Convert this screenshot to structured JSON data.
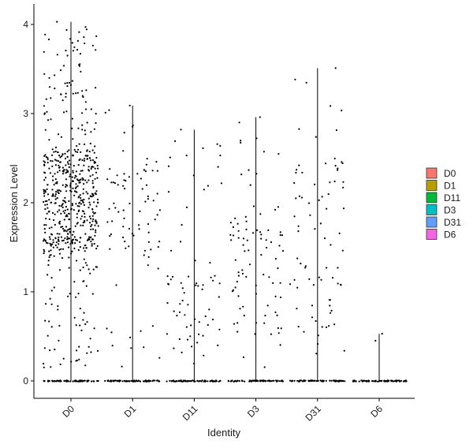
{
  "chart_data": {
    "type": "violin-jitter",
    "xlabel": "Identity",
    "ylabel": "Expression Level",
    "ylim": [
      -0.2,
      4.15
    ],
    "yticks": [
      0,
      1,
      2,
      3,
      4
    ],
    "categories": [
      "D0",
      "D1",
      "D11",
      "D3",
      "D31",
      "D6"
    ],
    "legend": {
      "placement": "right",
      "items": [
        {
          "label": "D0",
          "color": "#F8766D"
        },
        {
          "label": "D1",
          "color": "#B79F00"
        },
        {
          "label": "D11",
          "color": "#00BA38"
        },
        {
          "label": "D3",
          "color": "#00BFC4"
        },
        {
          "label": "D31",
          "color": "#619CFF"
        },
        {
          "label": "D6",
          "color": "#F564E3"
        }
      ]
    },
    "groups": [
      {
        "name": "D0",
        "max": 4.03,
        "zero_count": 70,
        "nonzero_count": 620,
        "band": [
          1.45,
          2.6
        ]
      },
      {
        "name": "D1",
        "max": 3.09,
        "zero_count": 70,
        "nonzero_count": 85,
        "band": [
          1.4,
          2.4
        ]
      },
      {
        "name": "D11",
        "max": 2.82,
        "zero_count": 70,
        "nonzero_count": 70,
        "band": [
          0.3,
          1.2
        ]
      },
      {
        "name": "D3",
        "max": 2.96,
        "zero_count": 70,
        "nonzero_count": 90,
        "band": [
          0.5,
          2.0
        ]
      },
      {
        "name": "D31",
        "max": 3.51,
        "zero_count": 70,
        "nonzero_count": 80,
        "band": [
          0.5,
          2.5
        ]
      },
      {
        "name": "D6",
        "max": 0.53,
        "zero_count": 70,
        "nonzero_count": 2,
        "band": [
          0.3,
          0.55
        ]
      }
    ]
  }
}
